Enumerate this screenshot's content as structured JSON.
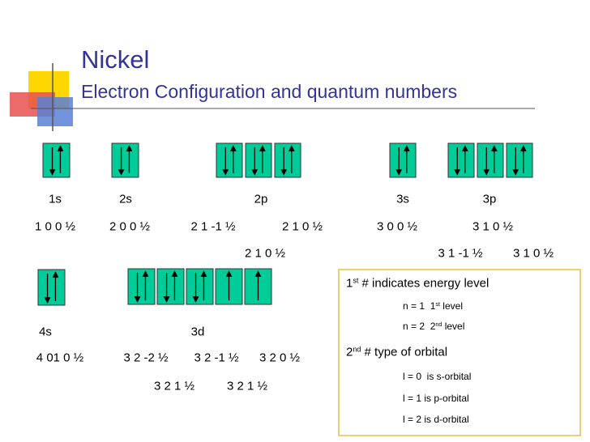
{
  "slide": {
    "title": "Nickel",
    "subtitle": "Electron Configuration and quantum numbers"
  },
  "orbital_labels": [
    "1s",
    "2s",
    "2p",
    "3s",
    "3p",
    "4s",
    "3d"
  ],
  "quantum_numbers": [
    "1 0 0 ½",
    "2 0 0 ½",
    "2 1 -1 ½",
    "2 1 0 ½",
    "3 0 0 ½",
    "3 1 0 ½",
    "2 1 0 ½",
    "3 1 -1 ½",
    "3 1 0 ½",
    "4 01 0 ½",
    "3 2 -2 ½",
    "3 2 -1 ½",
    "3 2 0 ½",
    "3 2 1 ½",
    "3 2 1 ½"
  ],
  "note": {
    "lines": [
      [
        {
          "text": "1"
        },
        {
          "sup": "st"
        },
        {
          "text": " # indicates energy level"
        }
      ],
      [
        {
          "text": "n = 1  1"
        },
        {
          "sup": "st"
        },
        {
          "text": " level"
        }
      ],
      [
        {
          "text": "n = 2  2"
        },
        {
          "sup": "nd"
        },
        {
          "text": " level"
        }
      ],
      [
        {
          "text": "2"
        },
        {
          "sup": "nd"
        },
        {
          "text": " # type of orbital"
        }
      ],
      [
        {
          "text": "l = 0  is s-orbital"
        }
      ],
      [
        {
          "text": "l = 1 is p-orbital"
        }
      ],
      [
        {
          "text": "l = 2 is d-orbital"
        }
      ]
    ]
  }
}
